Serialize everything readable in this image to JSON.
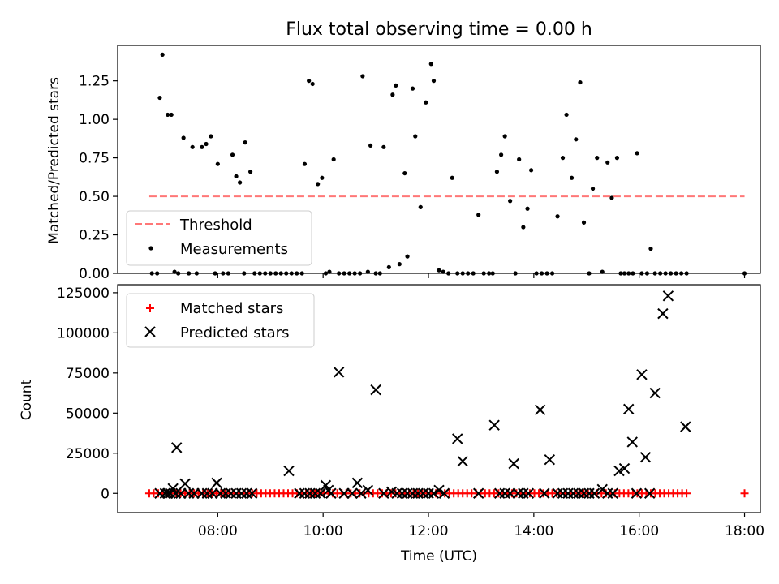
{
  "chart_data": [
    {
      "type": "scatter",
      "title": "Flux total observing time = 0.00 h",
      "xlabel": "",
      "ylabel": "Matched/Predicted stars",
      "ylim": [
        0,
        1.48
      ],
      "xlim": [
        6.1,
        18.3
      ],
      "yticks": [
        "0.00",
        "0.25",
        "0.50",
        "0.75",
        "1.00",
        "1.25"
      ],
      "yticks_values": [
        0,
        0.25,
        0.5,
        0.75,
        1.0,
        1.25
      ],
      "grid": false,
      "legend_position": "lower-left",
      "threshold": {
        "name": "Threshold",
        "value": 0.5,
        "x_range": [
          6.7,
          18.0
        ],
        "color": "#ff7777",
        "style": "dashed"
      },
      "series": [
        {
          "name": "Measurements",
          "color": "#000000",
          "points": [
            [
              6.75,
              0
            ],
            [
              6.85,
              0
            ],
            [
              6.9,
              1.14
            ],
            [
              6.95,
              1.42
            ],
            [
              7.05,
              1.03
            ],
            [
              7.12,
              1.03
            ],
            [
              7.18,
              0.01
            ],
            [
              7.25,
              0
            ],
            [
              7.35,
              0.88
            ],
            [
              7.45,
              0
            ],
            [
              7.52,
              0.82
            ],
            [
              7.6,
              0
            ],
            [
              7.7,
              0.82
            ],
            [
              7.78,
              0.84
            ],
            [
              7.87,
              0.89
            ],
            [
              7.95,
              0
            ],
            [
              8.0,
              0.71
            ],
            [
              8.1,
              0
            ],
            [
              8.2,
              0
            ],
            [
              8.28,
              0.77
            ],
            [
              8.35,
              0.63
            ],
            [
              8.42,
              0.59
            ],
            [
              8.5,
              0
            ],
            [
              8.52,
              0.85
            ],
            [
              8.62,
              0.66
            ],
            [
              8.7,
              0
            ],
            [
              8.8,
              0
            ],
            [
              8.9,
              0
            ],
            [
              9.0,
              0
            ],
            [
              9.1,
              0
            ],
            [
              9.2,
              0
            ],
            [
              9.3,
              0
            ],
            [
              9.4,
              0
            ],
            [
              9.5,
              0
            ],
            [
              9.6,
              0
            ],
            [
              9.65,
              0.71
            ],
            [
              9.73,
              1.25
            ],
            [
              9.8,
              1.23
            ],
            [
              9.9,
              0.58
            ],
            [
              9.98,
              0.62
            ],
            [
              10.05,
              0
            ],
            [
              10.12,
              0.01
            ],
            [
              10.2,
              0.74
            ],
            [
              10.3,
              0
            ],
            [
              10.4,
              0
            ],
            [
              10.5,
              0
            ],
            [
              10.6,
              0
            ],
            [
              10.7,
              0
            ],
            [
              10.75,
              1.28
            ],
            [
              10.85,
              0.01
            ],
            [
              10.9,
              0.83
            ],
            [
              11.0,
              0
            ],
            [
              11.08,
              0
            ],
            [
              11.15,
              0.82
            ],
            [
              11.25,
              0.04
            ],
            [
              11.32,
              1.16
            ],
            [
              11.38,
              1.22
            ],
            [
              11.45,
              0.06
            ],
            [
              11.55,
              0.65
            ],
            [
              11.6,
              0.11
            ],
            [
              11.7,
              1.2
            ],
            [
              11.75,
              0.89
            ],
            [
              11.85,
              0.43
            ],
            [
              11.95,
              1.11
            ],
            [
              12.05,
              1.36
            ],
            [
              12.1,
              1.25
            ],
            [
              12.2,
              0.02
            ],
            [
              12.28,
              0.01
            ],
            [
              12.38,
              0
            ],
            [
              12.45,
              0.62
            ],
            [
              12.55,
              0
            ],
            [
              12.65,
              0
            ],
            [
              12.75,
              0
            ],
            [
              12.85,
              0
            ],
            [
              12.95,
              0.38
            ],
            [
              13.05,
              0
            ],
            [
              13.15,
              0
            ],
            [
              13.22,
              0
            ],
            [
              13.3,
              0.66
            ],
            [
              13.38,
              0.77
            ],
            [
              13.45,
              0.89
            ],
            [
              13.55,
              0.47
            ],
            [
              13.65,
              0
            ],
            [
              13.72,
              0.74
            ],
            [
              13.8,
              0.3
            ],
            [
              13.88,
              0.42
            ],
            [
              13.95,
              0.67
            ],
            [
              14.05,
              0
            ],
            [
              14.15,
              0
            ],
            [
              14.25,
              0
            ],
            [
              14.35,
              0
            ],
            [
              14.45,
              0.37
            ],
            [
              14.55,
              0.75
            ],
            [
              14.62,
              1.03
            ],
            [
              14.72,
              0.62
            ],
            [
              14.8,
              0.87
            ],
            [
              14.88,
              1.24
            ],
            [
              14.95,
              0.33
            ],
            [
              15.05,
              0
            ],
            [
              15.12,
              0.55
            ],
            [
              15.2,
              0.75
            ],
            [
              15.3,
              0.01
            ],
            [
              15.4,
              0.72
            ],
            [
              15.48,
              0.49
            ],
            [
              15.58,
              0.75
            ],
            [
              15.65,
              0
            ],
            [
              15.72,
              0
            ],
            [
              15.8,
              0
            ],
            [
              15.88,
              0
            ],
            [
              15.96,
              0.78
            ],
            [
              16.05,
              0
            ],
            [
              16.15,
              0
            ],
            [
              16.22,
              0.16
            ],
            [
              16.3,
              0
            ],
            [
              16.4,
              0
            ],
            [
              16.5,
              0
            ],
            [
              16.6,
              0
            ],
            [
              16.7,
              0
            ],
            [
              16.8,
              0
            ],
            [
              16.9,
              0
            ],
            [
              18.0,
              0
            ]
          ]
        }
      ]
    },
    {
      "type": "scatter",
      "title": "",
      "xlabel": "Time (UTC)",
      "ylabel": "Count",
      "ylim": [
        -12000,
        130000
      ],
      "xlim": [
        6.1,
        18.3
      ],
      "yticks": [
        "0",
        "25000",
        "50000",
        "75000",
        "100000",
        "125000"
      ],
      "yticks_values": [
        0,
        25000,
        50000,
        75000,
        100000,
        125000
      ],
      "xticks": [
        "08:00",
        "10:00",
        "12:00",
        "14:00",
        "16:00",
        "18:00"
      ],
      "xticks_values": [
        8,
        10,
        12,
        14,
        16,
        18
      ],
      "grid": false,
      "legend_position": "upper-left",
      "series": [
        {
          "name": "Matched stars",
          "marker": "plus",
          "color": "#ff0000",
          "start": 6.7,
          "end": 16.9,
          "step": 0.085,
          "points": [
            [
              18.0,
              0
            ]
          ]
        },
        {
          "name": "Predicted stars",
          "marker": "x",
          "color": "#000000",
          "points": [
            [
              6.9,
              0
            ],
            [
              7.0,
              0
            ],
            [
              7.05,
              0
            ],
            [
              7.1,
              0
            ],
            [
              7.15,
              3000
            ],
            [
              7.2,
              0
            ],
            [
              7.22,
              28500
            ],
            [
              7.3,
              0
            ],
            [
              7.38,
              6000
            ],
            [
              7.45,
              0
            ],
            [
              7.55,
              0
            ],
            [
              7.7,
              0
            ],
            [
              7.8,
              0
            ],
            [
              7.9,
              0
            ],
            [
              7.98,
              6500
            ],
            [
              8.05,
              0
            ],
            [
              8.15,
              0
            ],
            [
              8.25,
              0
            ],
            [
              8.35,
              0
            ],
            [
              8.45,
              0
            ],
            [
              8.55,
              0
            ],
            [
              8.65,
              0
            ],
            [
              9.35,
              14000
            ],
            [
              9.55,
              0
            ],
            [
              9.65,
              0
            ],
            [
              9.75,
              0
            ],
            [
              9.85,
              0
            ],
            [
              9.95,
              0
            ],
            [
              10.05,
              5000
            ],
            [
              10.1,
              2000
            ],
            [
              10.15,
              0
            ],
            [
              10.3,
              75500
            ],
            [
              10.4,
              0
            ],
            [
              10.55,
              0
            ],
            [
              10.65,
              6500
            ],
            [
              10.72,
              0
            ],
            [
              10.85,
              2000
            ],
            [
              11.0,
              64500
            ],
            [
              11.15,
              0
            ],
            [
              11.3,
              1000
            ],
            [
              11.4,
              0
            ],
            [
              11.5,
              0
            ],
            [
              11.6,
              0
            ],
            [
              11.7,
              0
            ],
            [
              11.8,
              0
            ],
            [
              11.9,
              0
            ],
            [
              12.0,
              0
            ],
            [
              12.1,
              0
            ],
            [
              12.2,
              2000
            ],
            [
              12.3,
              0
            ],
            [
              12.55,
              34000
            ],
            [
              12.65,
              20000
            ],
            [
              12.95,
              0
            ],
            [
              13.25,
              42500
            ],
            [
              13.35,
              0
            ],
            [
              13.45,
              0
            ],
            [
              13.55,
              0
            ],
            [
              13.62,
              18500
            ],
            [
              13.7,
              0
            ],
            [
              13.8,
              0
            ],
            [
              13.9,
              0
            ],
            [
              14.12,
              52000
            ],
            [
              14.2,
              0
            ],
            [
              14.3,
              21000
            ],
            [
              14.45,
              0
            ],
            [
              14.55,
              0
            ],
            [
              14.65,
              0
            ],
            [
              14.75,
              0
            ],
            [
              14.85,
              0
            ],
            [
              14.95,
              0
            ],
            [
              15.05,
              0
            ],
            [
              15.15,
              0
            ],
            [
              15.3,
              2500
            ],
            [
              15.4,
              0
            ],
            [
              15.5,
              0
            ],
            [
              15.62,
              14000
            ],
            [
              15.72,
              15500
            ],
            [
              15.8,
              52500
            ],
            [
              15.87,
              32000
            ],
            [
              15.95,
              0
            ],
            [
              16.05,
              74000
            ],
            [
              16.12,
              22500
            ],
            [
              16.2,
              0
            ],
            [
              16.3,
              62500
            ],
            [
              16.45,
              112000
            ],
            [
              16.55,
              123000
            ],
            [
              16.88,
              41500
            ]
          ]
        }
      ]
    }
  ]
}
